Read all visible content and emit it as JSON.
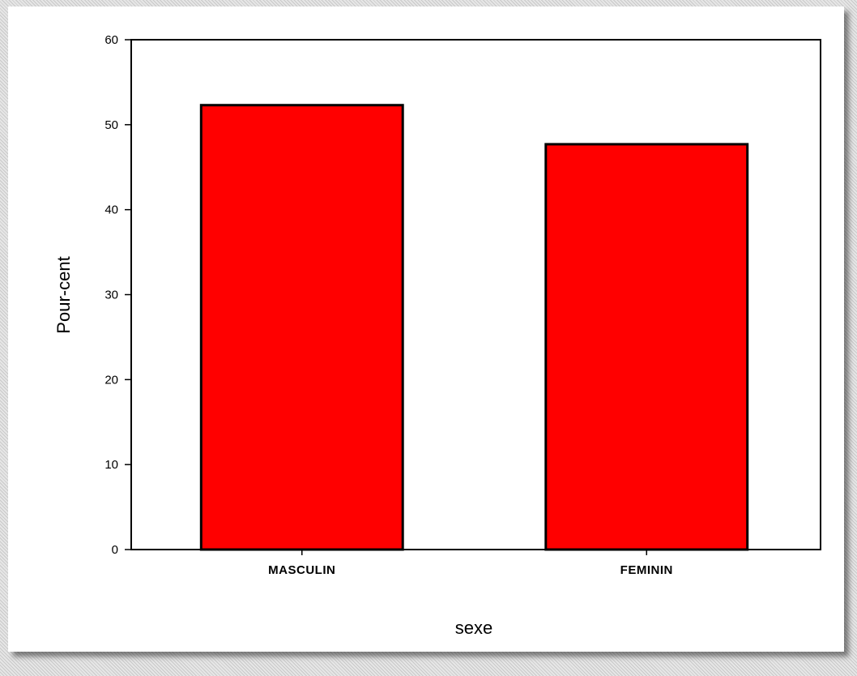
{
  "chart_data": {
    "type": "bar",
    "categories": [
      "MASCULIN",
      "FEMININ"
    ],
    "values": [
      52.3,
      47.7
    ],
    "xlabel": "sexe",
    "ylabel": "Pour-cent",
    "ylim": [
      0,
      60
    ],
    "yticks": [
      "0",
      "10",
      "20",
      "30",
      "40",
      "50",
      "60"
    ],
    "grid": false,
    "bar_color": "#ff0000",
    "bar_edge_color": "#000000"
  }
}
